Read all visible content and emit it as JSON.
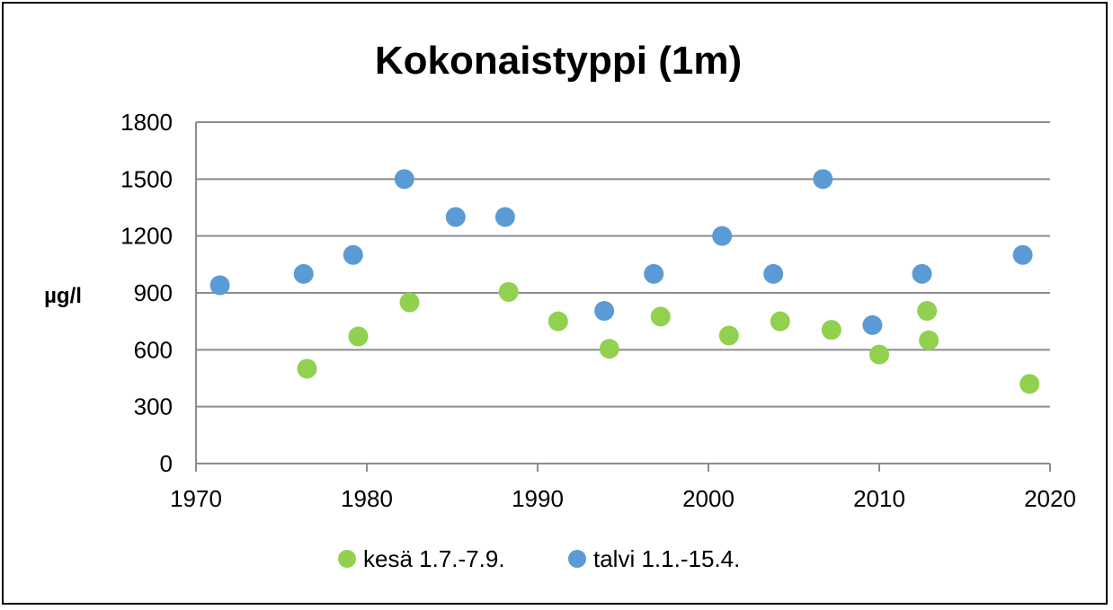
{
  "chart_data": {
    "type": "scatter",
    "title": "Kokonaistyppi (1m)",
    "xlabel": "",
    "ylabel": "µg/l",
    "xlim": [
      1970,
      2020
    ],
    "ylim": [
      0,
      1800
    ],
    "xticks": [
      1970,
      1980,
      1990,
      2000,
      2010,
      2020
    ],
    "yticks": [
      0,
      300,
      600,
      900,
      1200,
      1500,
      1800
    ],
    "grid": "horizontal",
    "legend_position": "bottom",
    "series": [
      {
        "name": "kesä 1.7.-7.9.",
        "color": "#92D050",
        "points": [
          [
            1976.5,
            500
          ],
          [
            1979.5,
            670
          ],
          [
            1982.5,
            850
          ],
          [
            1988.3,
            905
          ],
          [
            1991.2,
            750
          ],
          [
            1994.2,
            605
          ],
          [
            1997.2,
            775
          ],
          [
            2001.2,
            675
          ],
          [
            2004.2,
            750
          ],
          [
            2007.2,
            705
          ],
          [
            2010.0,
            575
          ],
          [
            2012.8,
            805
          ],
          [
            2012.9,
            650
          ],
          [
            2018.8,
            420
          ]
        ]
      },
      {
        "name": "talvi 1.1.-15.4.",
        "color": "#5B9BD5",
        "points": [
          [
            1971.4,
            940
          ],
          [
            1976.3,
            1000
          ],
          [
            1979.2,
            1100
          ],
          [
            1982.2,
            1500
          ],
          [
            1985.2,
            1300
          ],
          [
            1988.1,
            1300
          ],
          [
            1993.9,
            805
          ],
          [
            1996.8,
            1000
          ],
          [
            2000.8,
            1200
          ],
          [
            2003.8,
            1000
          ],
          [
            2006.7,
            1500
          ],
          [
            2009.6,
            730
          ],
          [
            2012.5,
            1000
          ],
          [
            2018.4,
            1100
          ]
        ]
      }
    ]
  }
}
